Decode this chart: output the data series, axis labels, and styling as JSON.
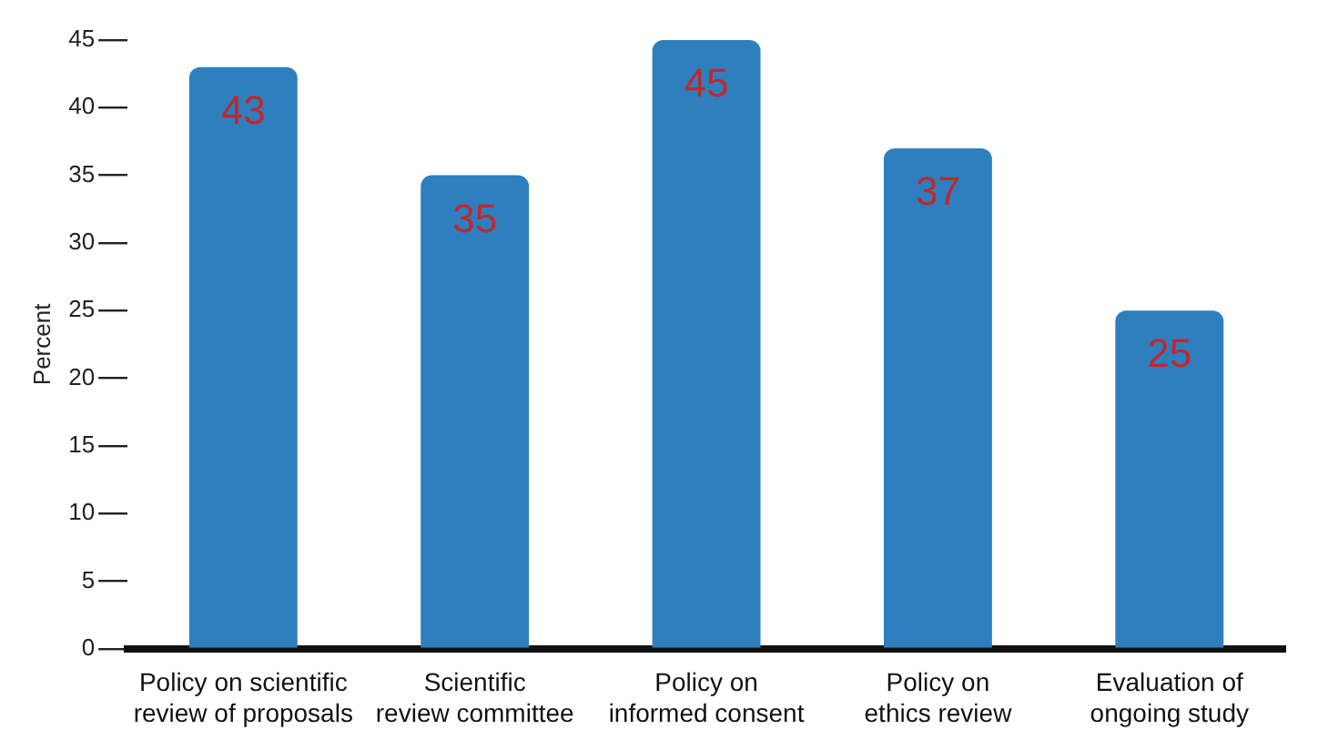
{
  "chart_data": {
    "type": "bar",
    "ylabel": "Percent",
    "categories": [
      "Policy on scientific review of proposals",
      "Scientific review committee",
      "Policy on informed consent",
      "Policy on ethics review",
      "Evaluation of ongoing study"
    ],
    "values": [
      43,
      35,
      45,
      37,
      25
    ],
    "color": "#2f7fbf",
    "ylim": [
      0,
      45
    ],
    "yticks": [
      0,
      5,
      10,
      15,
      20,
      25,
      30,
      35,
      40,
      45
    ],
    "grid": false,
    "legend": false,
    "data_labels": true
  }
}
